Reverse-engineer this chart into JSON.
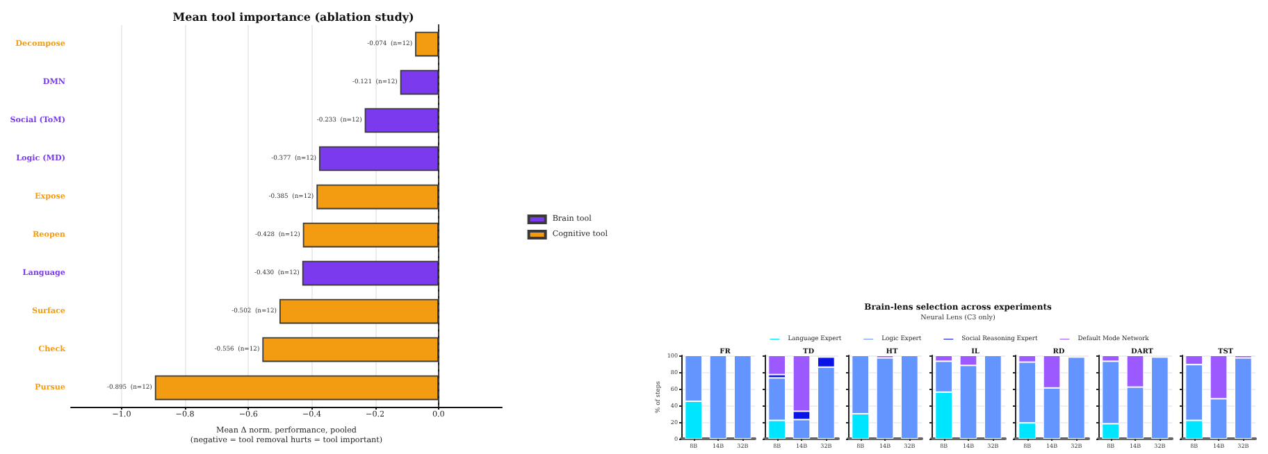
{
  "chart_data": [
    {
      "type": "bar",
      "orientation": "horizontal",
      "title": "Mean tool importance (ablation study)",
      "xlabel": "Mean Δ norm. performance, pooled\n(negative = tool removal hurts = tool important)",
      "categories": [
        "Decompose",
        "DMN",
        "Social (ToM)",
        "Logic (MD)",
        "Expose",
        "Reopen",
        "Language",
        "Surface",
        "Check",
        "Pursue"
      ],
      "series": [
        {
          "name": "Brain tool",
          "color": "#7b3aed",
          "values": [
            null,
            -0.121,
            -0.233,
            -0.377,
            null,
            null,
            -0.43,
            null,
            null,
            null
          ],
          "value_labels": [
            null,
            "-0.121  (n=12)",
            "-0.233  (n=12)",
            "-0.377  (n=12)",
            null,
            null,
            "-0.430  (n=12)",
            null,
            null,
            null
          ]
        },
        {
          "name": "Cognitive tool",
          "color": "#f39c12",
          "values": [
            -0.074,
            null,
            null,
            null,
            -0.385,
            -0.428,
            null,
            -0.502,
            -0.556,
            -0.895
          ],
          "value_labels": [
            "-0.074  (n=12)",
            null,
            null,
            null,
            "-0.385  (n=12)",
            "-0.428  (n=12)",
            null,
            "-0.502  (n=12)",
            "-0.556  (n=12)",
            "-0.895  (n=12)"
          ]
        }
      ],
      "xlim": [
        -1.16,
        0.2
      ],
      "xticks": [
        {
          "value": -1.0,
          "label": "−1.0"
        },
        {
          "value": -0.8,
          "label": "−0.8"
        },
        {
          "value": -0.6,
          "label": "−0.6"
        },
        {
          "value": -0.4,
          "label": "−0.4"
        },
        {
          "value": -0.2,
          "label": "−0.2"
        },
        {
          "value": 0,
          "label": "0.0"
        }
      ],
      "grid": "x",
      "legend": "right",
      "ref_lines": [
        {
          "axis": "x",
          "value": 0,
          "color": "#444444",
          "line_style": "dashed"
        }
      ]
    },
    {
      "type": "other",
      "title": "Brain-lens selection across experiments",
      "subtitle": "Neural Lens (C3 only)"
    },
    {
      "type": "bar",
      "stacked": true,
      "title": "FR",
      "ylabel": "% of steps",
      "categories": [
        "8B",
        "14B",
        "32B"
      ],
      "ylim": [
        0,
        100
      ],
      "yticks": [
        0,
        20,
        40,
        60,
        80,
        100
      ],
      "grid": "y",
      "legend": "top",
      "series": [
        {
          "name": "Language Expert",
          "color": "#00e5ff",
          "values": [
            45,
            0,
            0
          ]
        },
        {
          "name": "Logic Expert",
          "color": "#6495ff",
          "values": [
            55,
            100,
            100
          ]
        },
        {
          "name": "Social Reasoning Expert",
          "color": "#0a14e6",
          "values": [
            0,
            0,
            0
          ]
        },
        {
          "name": "Default Mode Network",
          "color": "#9b59ff",
          "values": [
            0,
            0,
            0
          ]
        }
      ]
    },
    {
      "type": "bar",
      "stacked": true,
      "title": "TD",
      "categories": [
        "8B",
        "14B",
        "32B"
      ],
      "ylim": [
        0,
        100
      ],
      "yticks": [
        0,
        20,
        40,
        60,
        80,
        100
      ],
      "grid": "y",
      "tick_labels": "x",
      "series": [
        {
          "color": "#00e5ff",
          "values": [
            22,
            0,
            0
          ]
        },
        {
          "color": "#6495ff",
          "values": [
            51,
            23,
            86
          ]
        },
        {
          "color": "#0a14e6",
          "values": [
            4,
            10,
            12
          ]
        },
        {
          "color": "#9b59ff",
          "values": [
            23,
            67,
            0
          ]
        }
      ]
    },
    {
      "type": "bar",
      "stacked": true,
      "title": "HT",
      "categories": [
        "8B",
        "14B",
        "32B"
      ],
      "ylim": [
        0,
        100
      ],
      "yticks": [
        0,
        20,
        40,
        60,
        80,
        100
      ],
      "grid": "y",
      "tick_labels": "x",
      "series": [
        {
          "color": "#00e5ff",
          "values": [
            30,
            0,
            0
          ]
        },
        {
          "color": "#6495ff",
          "values": [
            70,
            97,
            100
          ]
        },
        {
          "color": "#0a14e6",
          "values": [
            0,
            0,
            0
          ]
        },
        {
          "color": "#9b59ff",
          "values": [
            0,
            3,
            0
          ]
        }
      ]
    },
    {
      "type": "bar",
      "stacked": true,
      "title": "IL",
      "categories": [
        "8B",
        "14B",
        "32B"
      ],
      "ylim": [
        0,
        100
      ],
      "yticks": [
        0,
        20,
        40,
        60,
        80,
        100
      ],
      "grid": "y",
      "tick_labels": "x",
      "series": [
        {
          "color": "#00e5ff",
          "values": [
            56,
            0,
            0
          ]
        },
        {
          "color": "#6495ff",
          "values": [
            37,
            88,
            100
          ]
        },
        {
          "color": "#0a14e6",
          "values": [
            0,
            0,
            0
          ]
        },
        {
          "color": "#9b59ff",
          "values": [
            7,
            12,
            0
          ]
        }
      ]
    },
    {
      "type": "bar",
      "stacked": true,
      "title": "RD",
      "categories": [
        "8B",
        "14B",
        "32B"
      ],
      "ylim": [
        0,
        100
      ],
      "yticks": [
        0,
        20,
        40,
        60,
        80,
        100
      ],
      "grid": "y",
      "tick_labels": "x",
      "series": [
        {
          "color": "#00e5ff",
          "values": [
            19,
            0,
            0
          ]
        },
        {
          "color": "#6495ff",
          "values": [
            73,
            61,
            98
          ]
        },
        {
          "color": "#0a14e6",
          "values": [
            0,
            0,
            0
          ]
        },
        {
          "color": "#9b59ff",
          "values": [
            8,
            39,
            0
          ]
        }
      ]
    },
    {
      "type": "bar",
      "stacked": true,
      "title": "DART",
      "categories": [
        "8B",
        "14B",
        "32B"
      ],
      "ylim": [
        0,
        100
      ],
      "yticks": [
        0,
        20,
        40,
        60,
        80,
        100
      ],
      "grid": "y",
      "tick_labels": "x",
      "series": [
        {
          "color": "#00e5ff",
          "values": [
            18,
            0,
            0
          ]
        },
        {
          "color": "#6495ff",
          "values": [
            75,
            62,
            98
          ]
        },
        {
          "color": "#0a14e6",
          "values": [
            0,
            0,
            0
          ]
        },
        {
          "color": "#9b59ff",
          "values": [
            7,
            38,
            0
          ]
        }
      ]
    },
    {
      "type": "bar",
      "stacked": true,
      "title": "TST",
      "categories": [
        "8B",
        "14B",
        "32B"
      ],
      "ylim": [
        0,
        100
      ],
      "yticks": [
        0,
        20,
        40,
        60,
        80,
        100
      ],
      "grid": "y",
      "tick_labels": "x",
      "series": [
        {
          "color": "#00e5ff",
          "values": [
            22,
            0,
            0
          ]
        },
        {
          "color": "#6495ff",
          "values": [
            67,
            48,
            97
          ]
        },
        {
          "color": "#0a14e6",
          "values": [
            0,
            0,
            0
          ]
        },
        {
          "color": "#9b59ff",
          "values": [
            11,
            52,
            3
          ]
        }
      ]
    }
  ]
}
